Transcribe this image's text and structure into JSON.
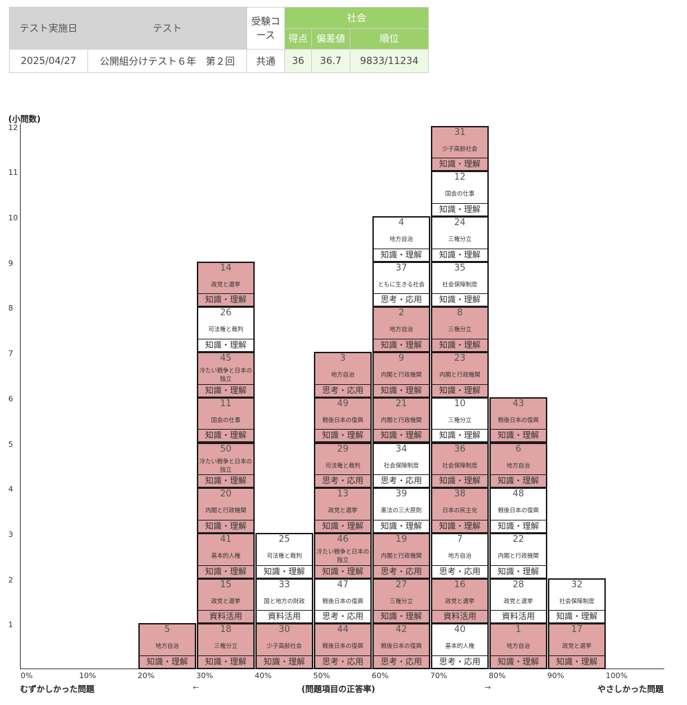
{
  "summary": {
    "header_date": "テスト実施日",
    "header_test": "テスト",
    "header_course": "受験コース",
    "subject": "社会",
    "header_score": "得点",
    "header_deviation": "偏差値",
    "header_rank": "順位",
    "date": "2025/04/27",
    "test_name": "公開組分けテスト６年　第２回",
    "course": "共通",
    "score": "36",
    "deviation": "36.7",
    "rank": "9833/11234"
  },
  "colors": {
    "correct": "#e0a4a4",
    "wrong": "#ffffff",
    "header_green": "#9bd06a",
    "header_gray": "#d4d4d4"
  },
  "chart_data": {
    "type": "stacked-card-histogram",
    "ylabel": "(小問数)",
    "xlabel": "(問題項目の正答率)",
    "left_label": "むずかしかった問題",
    "right_label": "やさしかった問題",
    "left_arrow": "←",
    "right_arrow": "→",
    "y_ticks": [
      "1",
      "2",
      "3",
      "4",
      "5",
      "6",
      "7",
      "8",
      "9",
      "10",
      "11",
      "12"
    ],
    "x_ticks": [
      "0%",
      "10%",
      "20%",
      "30%",
      "40%",
      "50%",
      "60%",
      "70%",
      "80%",
      "90%",
      "100%"
    ],
    "bins": [
      {
        "range": "20%",
        "items": [
          {
            "num": "5",
            "topic": "地方自治",
            "type": "知識・理解",
            "correct": true
          }
        ]
      },
      {
        "range": "30%",
        "items": [
          {
            "num": "18",
            "topic": "三権分立",
            "type": "知識・理解",
            "correct": true
          },
          {
            "num": "15",
            "topic": "政党と選挙",
            "type": "資料活用",
            "correct": true
          },
          {
            "num": "41",
            "topic": "基本的人権",
            "type": "知識・理解",
            "correct": true
          },
          {
            "num": "20",
            "topic": "内閣と行政機関",
            "type": "知識・理解",
            "correct": true
          },
          {
            "num": "50",
            "topic": "冷たい戦争と日本の独立",
            "type": "知識・理解",
            "correct": true
          },
          {
            "num": "11",
            "topic": "国会の仕事",
            "type": "知識・理解",
            "correct": true
          },
          {
            "num": "45",
            "topic": "冷たい戦争と日本の独立",
            "type": "知識・理解",
            "correct": true
          },
          {
            "num": "26",
            "topic": "司法権と裁判",
            "type": "知識・理解",
            "correct": false
          },
          {
            "num": "14",
            "topic": "政党と選挙",
            "type": "知識・理解",
            "correct": true
          }
        ]
      },
      {
        "range": "40%",
        "items": [
          {
            "num": "30",
            "topic": "少子高齢社会",
            "type": "知識・理解",
            "correct": true
          },
          {
            "num": "33",
            "topic": "国と地方の財政",
            "type": "資料活用",
            "correct": false
          },
          {
            "num": "25",
            "topic": "司法権と裁判",
            "type": "知識・理解",
            "correct": false
          }
        ]
      },
      {
        "range": "50%",
        "items": [
          {
            "num": "44",
            "topic": "戦後日本の復興",
            "type": "思考・応用",
            "correct": true
          },
          {
            "num": "47",
            "topic": "戦後日本の復興",
            "type": "思考・応用",
            "correct": false
          },
          {
            "num": "46",
            "topic": "冷たい戦争と日本の独立",
            "type": "知識・理解",
            "correct": true
          },
          {
            "num": "13",
            "topic": "政党と選挙",
            "type": "知識・理解",
            "correct": true
          },
          {
            "num": "29",
            "topic": "司法権と裁判",
            "type": "思考・応用",
            "correct": true
          },
          {
            "num": "49",
            "topic": "戦後日本の復興",
            "type": "知識・理解",
            "correct": true
          },
          {
            "num": "3",
            "topic": "地方自治",
            "type": "思考・応用",
            "correct": true
          }
        ]
      },
      {
        "range": "60%",
        "items": [
          {
            "num": "42",
            "topic": "戦後日本の復興",
            "type": "思考・応用",
            "correct": true
          },
          {
            "num": "27",
            "topic": "三権分立",
            "type": "知識・理解",
            "correct": true
          },
          {
            "num": "19",
            "topic": "内閣と行政機関",
            "type": "思考・応用",
            "correct": true
          },
          {
            "num": "39",
            "topic": "憲法の三大原則",
            "type": "知識・理解",
            "correct": false
          },
          {
            "num": "34",
            "topic": "社会保障制度",
            "type": "思考・応用",
            "correct": false
          },
          {
            "num": "21",
            "topic": "内閣と行政機関",
            "type": "知識・理解",
            "correct": true
          },
          {
            "num": "9",
            "topic": "内閣と行政機関",
            "type": "知識・理解",
            "correct": true
          },
          {
            "num": "2",
            "topic": "地方自治",
            "type": "知識・理解",
            "correct": true
          },
          {
            "num": "37",
            "topic": "ともに生きる社会",
            "type": "思考・応用",
            "correct": false
          },
          {
            "num": "4",
            "topic": "地方自治",
            "type": "知識・理解",
            "correct": false
          }
        ]
      },
      {
        "range": "70%",
        "items": [
          {
            "num": "40",
            "topic": "基本的人権",
            "type": "思考・応用",
            "correct": false
          },
          {
            "num": "16",
            "topic": "政党と選挙",
            "type": "資料活用",
            "correct": true
          },
          {
            "num": "7",
            "topic": "地方自治",
            "type": "思考・応用",
            "correct": false
          },
          {
            "num": "38",
            "topic": "日本の民主化",
            "type": "知識・理解",
            "correct": true
          },
          {
            "num": "36",
            "topic": "社会保障制度",
            "type": "知識・理解",
            "correct": true
          },
          {
            "num": "10",
            "topic": "三権分立",
            "type": "知識・理解",
            "correct": false
          },
          {
            "num": "23",
            "topic": "内閣と行政機関",
            "type": "知識・理解",
            "correct": true
          },
          {
            "num": "8",
            "topic": "三権分立",
            "type": "知識・理解",
            "correct": true
          },
          {
            "num": "35",
            "topic": "社会保障制度",
            "type": "知識・理解",
            "correct": false
          },
          {
            "num": "24",
            "topic": "三権分立",
            "type": "知識・理解",
            "correct": false
          },
          {
            "num": "12",
            "topic": "国会の仕事",
            "type": "知識・理解",
            "correct": false
          },
          {
            "num": "31",
            "topic": "少子高齢社会",
            "type": "知識・理解",
            "correct": true
          }
        ]
      },
      {
        "range": "80%",
        "items": [
          {
            "num": "1",
            "topic": "地方自治",
            "type": "知識・理解",
            "correct": true
          },
          {
            "num": "28",
            "topic": "政党と選挙",
            "type": "資料活用",
            "correct": false
          },
          {
            "num": "22",
            "topic": "内閣と行政機関",
            "type": "知識・理解",
            "correct": false
          },
          {
            "num": "48",
            "topic": "戦後日本の復興",
            "type": "知識・理解",
            "correct": false
          },
          {
            "num": "6",
            "topic": "地方自治",
            "type": "知識・理解",
            "correct": true
          },
          {
            "num": "43",
            "topic": "戦後日本の復興",
            "type": "知識・理解",
            "correct": true
          }
        ]
      },
      {
        "range": "90%",
        "items": [
          {
            "num": "17",
            "topic": "政党と選挙",
            "type": "知識・理解",
            "correct": true
          },
          {
            "num": "32",
            "topic": "社会保障制度",
            "type": "知識・理解",
            "correct": false
          }
        ]
      }
    ]
  }
}
